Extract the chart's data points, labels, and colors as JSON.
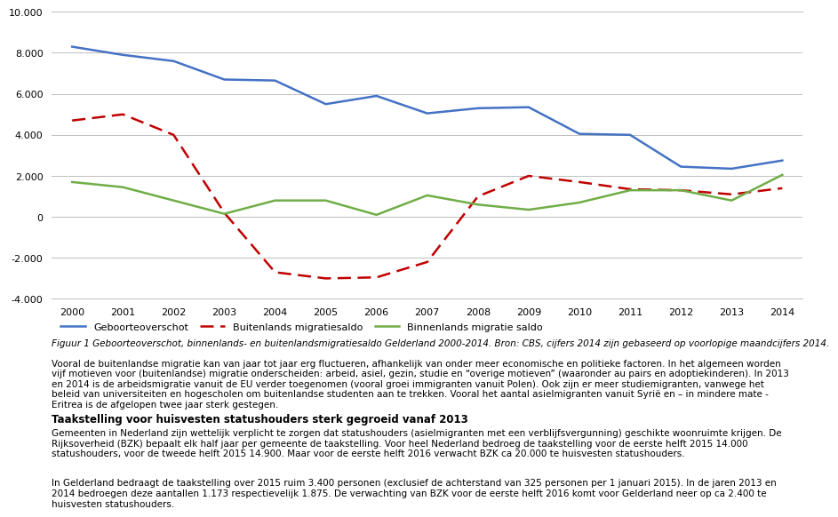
{
  "years": [
    2000,
    2001,
    2002,
    2003,
    2004,
    2005,
    2006,
    2007,
    2008,
    2009,
    2010,
    2011,
    2012,
    2013,
    2014
  ],
  "geboorteoverschot": [
    8300,
    7900,
    7600,
    6700,
    6650,
    5500,
    5900,
    5050,
    5300,
    5350,
    4050,
    4000,
    2450,
    2350,
    2750
  ],
  "buitenlands_migratiesaldo": [
    4700,
    5000,
    4000,
    200,
    -2700,
    -3000,
    -2950,
    -2200,
    1000,
    2000,
    1700,
    1350,
    1300,
    1100,
    1400
  ],
  "binnenlands_migratie_saldo": [
    1700,
    1450,
    800,
    150,
    800,
    800,
    100,
    1050,
    600,
    350,
    700,
    1300,
    1300,
    800,
    2050
  ],
  "ylim": [
    -4000,
    10000
  ],
  "yticks": [
    -4000,
    -2000,
    0,
    2000,
    4000,
    6000,
    8000,
    10000
  ],
  "ytick_labels": [
    "-4.000",
    "-2.000",
    "0",
    "2.000",
    "4.000",
    "6.000",
    "8.000",
    "10.000"
  ],
  "color_geboorte": "#4472c4",
  "color_buitenlands": "#c00000",
  "color_binnenlands": "#70ad47",
  "legend_geboorte": "Geboorteoverschot",
  "legend_buitenlands": "Buitenlands migratiesaldo",
  "legend_binnenlands": "Binnenlands migratie saldo",
  "background_color": "#ffffff",
  "grid_color": "#bfbfbf",
  "subtitle": "Figuur 1 Geboorteoverschot, binnenlands- en buitenlandsmigratiesaldo Gelderland 2000-2014. Bron: CBS, cijfers 2014 zijn gebaseerd op voorlopige maandcijfers 2014.",
  "body_text1": "Vooral de buitenlandse migratie kan van jaar tot jaar erg fluctueren, afhankelijk van onder meer economische en politieke factoren. In het algemeen worden\nvijf motieven voor (buitenlandse) migratie onderscheiden: arbeid, asiel, gezin, studie en “overige motieven” (waaronder au pairs en adoptiekinderen). In 2013\nen 2014 is de arbeidsmigratie vanuit de EU verder toegenomen (vooral groei immigranten vanuit Polen). Ook zijn er meer studiemigranten, vanwege het\nbeleid van universiteiten en hogescholen om buitenlandse studenten aan te trekken. Vooral het aantal asielmigranten vanuit Syrië en – in mindere mate -\nEritrea is de afgelopen twee jaar sterk gestegen.",
  "heading2": "Taakstelling voor huisvesten statushouders sterk gegroeid vanaf 2013",
  "body_text2": "Gemeenten in Nederland zijn wettelijk verplicht te zorgen dat statushouders (asielmigranten met een verblijfsvergunning) geschikte woonruimte krijgen. De\nRijksoverheid (BZK) bepaalt elk half jaar per gemeente de taakstelling. Voor heel Nederland bedroeg de taakstelling voor de eerste helft 2015 14.000\nstatushouders, voor de tweede helft 2015 14.900. Maar voor de eerste helft 2016 verwacht BZK ca 20.000 te huisvesten statushouders.",
  "body_text3": "In Gelderland bedraagt de taakstelling over 2015 ruim 3.400 personen (exclusief de achterstand van 325 personen per 1 januari 2015). In de jaren 2013 en\n2014 bedroegen deze aantallen 1.173 respectievelijk 1.875. De verwachting van BZK voor de eerste helft 2016 komt voor Gelderland neer op ca 2.400 te\nhuisvesten statushouders."
}
